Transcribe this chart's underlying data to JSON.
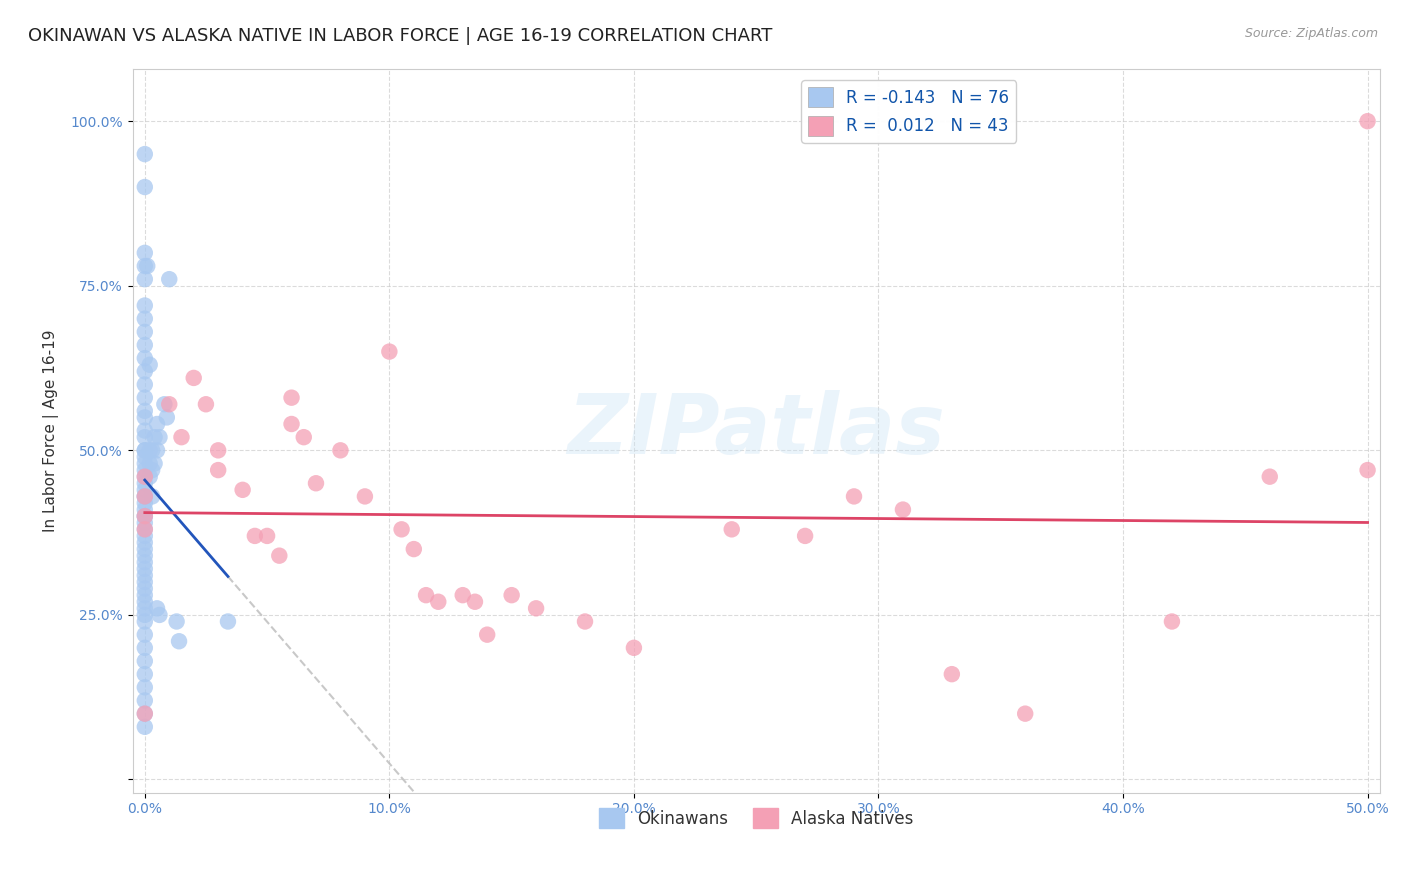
{
  "title": "OKINAWAN VS ALASKA NATIVE IN LABOR FORCE | AGE 16-19 CORRELATION CHART",
  "source": "Source: ZipAtlas.com",
  "ylabel": "In Labor Force | Age 16-19",
  "xlim": [
    -0.005,
    0.505
  ],
  "ylim": [
    -0.02,
    1.08
  ],
  "xticks": [
    0.0,
    0.1,
    0.2,
    0.3,
    0.4,
    0.5
  ],
  "xtick_labels": [
    "0.0%",
    "10.0%",
    "20.0%",
    "30.0%",
    "40.0%",
    "50.0%"
  ],
  "yticks": [
    0.0,
    0.25,
    0.5,
    0.75,
    1.0
  ],
  "ytick_labels": [
    "",
    "25.0%",
    "50.0%",
    "75.0%",
    "100.0%"
  ],
  "okinawan_color": "#a8c8f0",
  "alaska_color": "#f4a0b5",
  "okinawan_R": -0.143,
  "okinawan_N": 76,
  "alaska_R": 0.012,
  "alaska_N": 43,
  "trend_okinawan_color": "#2255bb",
  "trend_alaska_color": "#dd4466",
  "background_color": "#ffffff",
  "grid_color": "#cccccc",
  "watermark": "ZIPatlas",
  "okinawan_x": [
    0.0,
    0.0,
    0.0,
    0.0,
    0.0,
    0.0,
    0.0,
    0.0,
    0.0,
    0.0,
    0.0,
    0.0,
    0.0,
    0.0,
    0.0,
    0.0,
    0.0,
    0.0,
    0.0,
    0.0,
    0.0,
    0.0,
    0.0,
    0.0,
    0.0,
    0.0,
    0.0,
    0.0,
    0.0,
    0.0,
    0.0,
    0.0,
    0.0,
    0.0,
    0.0,
    0.0,
    0.0,
    0.0,
    0.0,
    0.0,
    0.0,
    0.0,
    0.0,
    0.0,
    0.0,
    0.0,
    0.0,
    0.0,
    0.0,
    0.0,
    0.0,
    0.0,
    0.0,
    0.0,
    0.0,
    0.002,
    0.002,
    0.002,
    0.003,
    0.003,
    0.003,
    0.004,
    0.004,
    0.005,
    0.005,
    0.005,
    0.006,
    0.006,
    0.008,
    0.009,
    0.01,
    0.013,
    0.014,
    0.034,
    0.002,
    0.001
  ],
  "okinawan_y": [
    0.95,
    0.9,
    0.8,
    0.78,
    0.76,
    0.72,
    0.7,
    0.68,
    0.66,
    0.64,
    0.62,
    0.6,
    0.58,
    0.56,
    0.55,
    0.53,
    0.52,
    0.5,
    0.5,
    0.49,
    0.48,
    0.47,
    0.46,
    0.45,
    0.44,
    0.43,
    0.43,
    0.42,
    0.41,
    0.4,
    0.4,
    0.39,
    0.38,
    0.37,
    0.36,
    0.35,
    0.34,
    0.33,
    0.32,
    0.31,
    0.3,
    0.29,
    0.28,
    0.27,
    0.26,
    0.25,
    0.24,
    0.22,
    0.2,
    0.18,
    0.16,
    0.14,
    0.12,
    0.1,
    0.08,
    0.5,
    0.48,
    0.46,
    0.5,
    0.47,
    0.43,
    0.52,
    0.48,
    0.54,
    0.5,
    0.26,
    0.52,
    0.25,
    0.57,
    0.55,
    0.76,
    0.24,
    0.21,
    0.24,
    0.63,
    0.78
  ],
  "alaska_x": [
    0.0,
    0.0,
    0.0,
    0.0,
    0.0,
    0.01,
    0.015,
    0.02,
    0.025,
    0.03,
    0.03,
    0.04,
    0.045,
    0.05,
    0.055,
    0.06,
    0.06,
    0.065,
    0.07,
    0.08,
    0.09,
    0.1,
    0.105,
    0.11,
    0.115,
    0.12,
    0.13,
    0.135,
    0.14,
    0.15,
    0.16,
    0.18,
    0.2,
    0.24,
    0.27,
    0.29,
    0.31,
    0.33,
    0.36,
    0.42,
    0.46,
    0.5,
    0.5
  ],
  "alaska_y": [
    0.46,
    0.43,
    0.4,
    0.38,
    0.1,
    0.57,
    0.52,
    0.61,
    0.57,
    0.5,
    0.47,
    0.44,
    0.37,
    0.37,
    0.34,
    0.58,
    0.54,
    0.52,
    0.45,
    0.5,
    0.43,
    0.65,
    0.38,
    0.35,
    0.28,
    0.27,
    0.28,
    0.27,
    0.22,
    0.28,
    0.26,
    0.24,
    0.2,
    0.38,
    0.37,
    0.43,
    0.41,
    0.16,
    0.1,
    0.24,
    0.46,
    0.47,
    1.0
  ]
}
